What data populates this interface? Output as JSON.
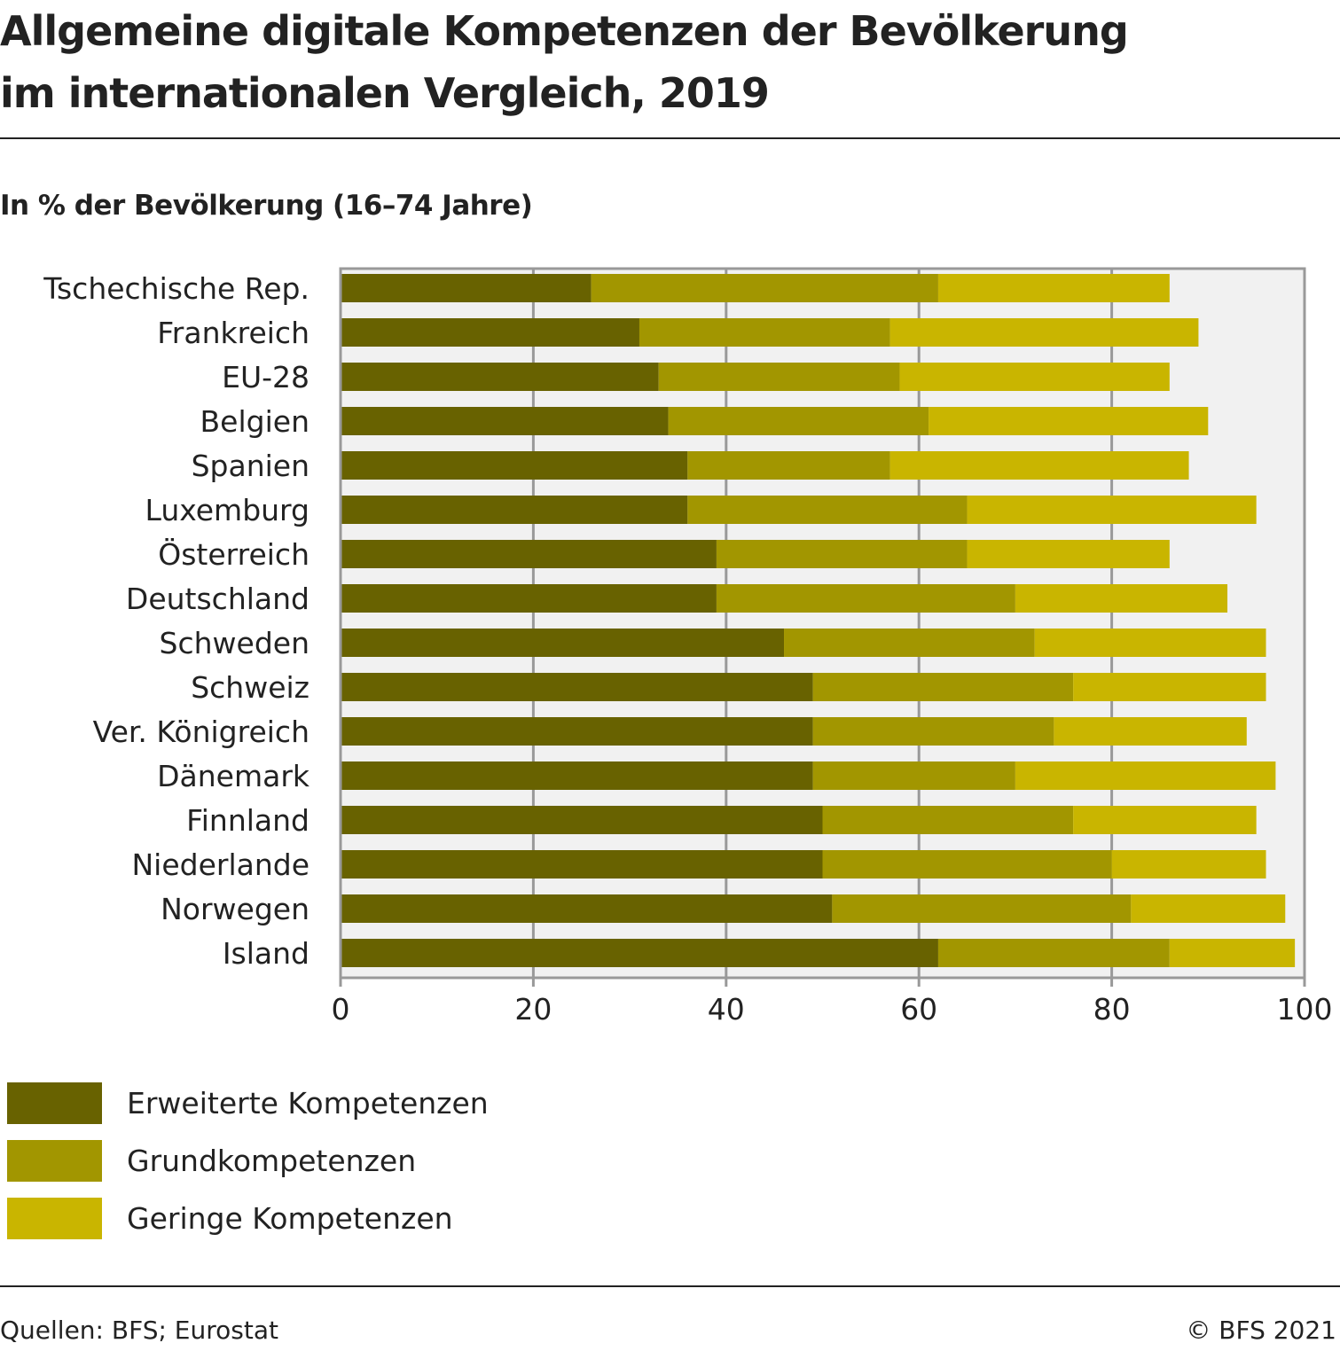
{
  "header": {
    "title_line1": "Allgemeine digitale Kompetenzen der Bevölkerung",
    "title_line2": "im internationalen Vergleich, 2019",
    "subtitle": "In % der Bevölkerung (16–74 Jahre)"
  },
  "footer": {
    "source": "Quellen: BFS; Eurostat",
    "copyright": "© BFS 2021"
  },
  "chart_data": {
    "type": "bar",
    "orientation": "horizontal",
    "stacked": true,
    "title": "Allgemeine digitale Kompetenzen der Bevölkerung im internationalen Vergleich, 2019",
    "subtitle": "In % der Bevölkerung (16–74 Jahre)",
    "xlabel": "",
    "ylabel": "",
    "xlim": [
      0,
      100
    ],
    "xticks": [
      0,
      20,
      40,
      60,
      80,
      100
    ],
    "grid": true,
    "legend_position": "bottom-left",
    "categories": [
      "Tschechische Rep.",
      "Frankreich",
      "EU-28",
      "Belgien",
      "Spanien",
      "Luxemburg",
      "Österreich",
      "Deutschland",
      "Schweden",
      "Schweiz",
      "Ver. Königreich",
      "Dänemark",
      "Finnland",
      "Niederlande",
      "Norwegen",
      "Island"
    ],
    "series": [
      {
        "name": "Erweiterte Kompetenzen",
        "color": "#686200",
        "values": [
          26,
          31,
          33,
          34,
          36,
          36,
          39,
          39,
          46,
          49,
          49,
          49,
          50,
          50,
          51,
          62
        ]
      },
      {
        "name": "Grundkompetenzen",
        "color": "#a29600",
        "values": [
          36,
          26,
          25,
          27,
          21,
          29,
          26,
          31,
          26,
          27,
          25,
          21,
          26,
          30,
          31,
          24
        ]
      },
      {
        "name": "Geringe Kompetenzen",
        "color": "#c9b500",
        "values": [
          24,
          32,
          28,
          29,
          31,
          30,
          21,
          22,
          24,
          20,
          20,
          27,
          19,
          16,
          16,
          13
        ]
      }
    ]
  }
}
